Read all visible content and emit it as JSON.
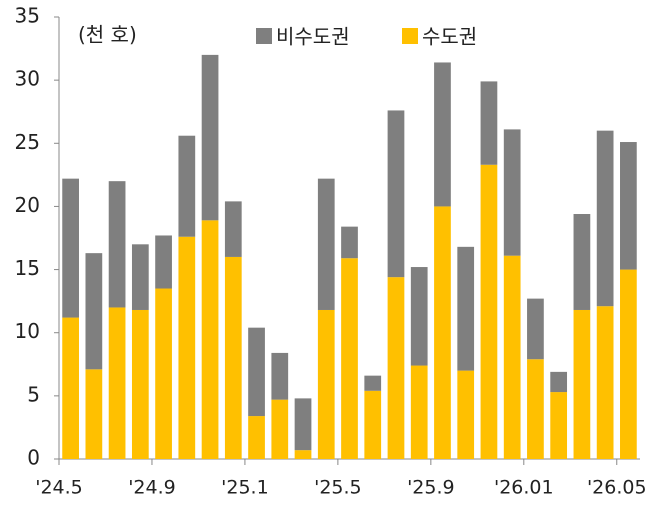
{
  "chart_data": {
    "type": "stacked_bar",
    "unit_label": "(천 호)",
    "categories": [
      "'24.5",
      null,
      null,
      null,
      "'24.9",
      null,
      null,
      null,
      "'25.1",
      null,
      null,
      null,
      "'25.5",
      null,
      null,
      null,
      "'25.9",
      null,
      null,
      null,
      "'26.01",
      null,
      null,
      null,
      "'26.05"
    ],
    "series": [
      {
        "name": "비수도권",
        "color": "#7f7f7f",
        "values": [
          11.0,
          9.2,
          10.0,
          5.2,
          4.2,
          8.0,
          13.1,
          4.4,
          7.0,
          3.7,
          4.1,
          10.4,
          2.5,
          1.2,
          13.2,
          7.8,
          11.4,
          9.8,
          6.6,
          10.0,
          4.8,
          1.6,
          7.6,
          13.9,
          10.1
        ]
      },
      {
        "name": "수도권",
        "color": "#ffc000",
        "values": [
          11.2,
          7.1,
          12.0,
          11.8,
          13.5,
          17.6,
          18.9,
          16.0,
          3.4,
          4.7,
          0.7,
          11.8,
          15.9,
          5.4,
          14.4,
          7.4,
          20.0,
          7.0,
          23.3,
          16.1,
          7.9,
          5.3,
          11.8,
          12.1,
          15.0
        ]
      }
    ],
    "ylim": [
      0,
      35
    ],
    "yticks": [
      0,
      5,
      10,
      15,
      20,
      25,
      30,
      35
    ]
  }
}
